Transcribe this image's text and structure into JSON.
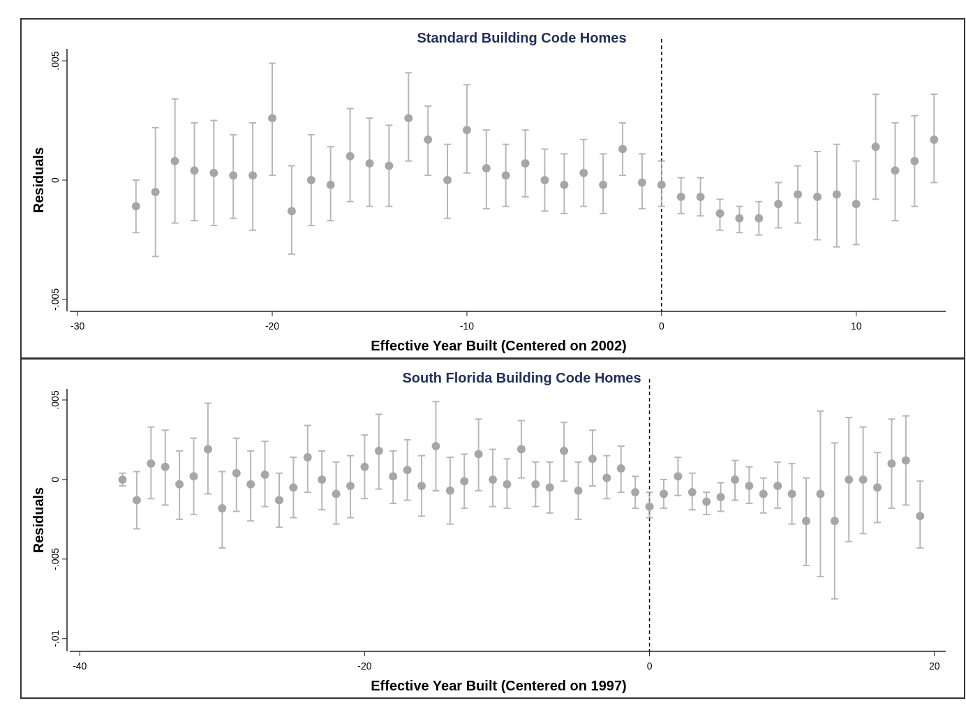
{
  "chart_data": [
    {
      "type": "scatter",
      "title": "Standard Building Code Homes",
      "xlabel": "Effective Year Built (Centered on 2002)",
      "ylabel": "Residuals",
      "marker": "circle",
      "xlim": [
        -30.4,
        14.6
      ],
      "ylim": [
        -0.0055,
        0.0055
      ],
      "xticks": [
        -30,
        -20,
        -10,
        0,
        10
      ],
      "yticks": [
        {
          "value": -0.005,
          "label": "-.005"
        },
        0,
        {
          "value": 0.005,
          "label": ".005"
        }
      ],
      "ref_lines": [
        {
          "axis": "x",
          "value": 0,
          "color": "#000000",
          "line_style": "dashed"
        }
      ],
      "series": [
        {
          "color": "#a6a6a6",
          "x": [
            -27,
            -26,
            -25,
            -24,
            -23,
            -22,
            -21,
            -20,
            -19,
            -18,
            -17,
            -16,
            -15,
            -14,
            -13,
            -12,
            -11,
            -10,
            -9,
            -8,
            -7,
            -6,
            -5,
            -4,
            -3,
            -2,
            -1,
            0,
            1,
            2,
            3,
            4,
            5,
            6,
            7,
            8,
            9,
            10,
            11,
            12,
            13,
            14
          ],
          "values": [
            -0.0011,
            -0.0005,
            0.0008,
            0.0004,
            0.0003,
            0.0002,
            0.0002,
            0.0026,
            -0.0013,
            0,
            -0.0002,
            0.001,
            0.0007,
            0.0006,
            0.0026,
            0.0017,
            0,
            0.0021,
            0.0005,
            0.0002,
            0.0007,
            0,
            -0.0002,
            0.0003,
            -0.0002,
            0.0013,
            -0.0001,
            -0.0002,
            -0.0007,
            -0.0007,
            -0.0014,
            -0.0016,
            -0.0016,
            -0.001,
            -0.0006,
            -0.0007,
            -0.0006,
            -0.001,
            0.0014,
            0.0004,
            0.0008,
            0.0017
          ],
          "errors": [
            [
              -0.0022,
              0
            ],
            [
              -0.0032,
              0.0022
            ],
            [
              -0.0018,
              0.0034
            ],
            [
              -0.0017,
              0.0024
            ],
            [
              -0.0019,
              0.0025
            ],
            [
              -0.0016,
              0.0019
            ],
            [
              -0.0021,
              0.0024
            ],
            [
              0.0002,
              0.0049
            ],
            [
              -0.0031,
              0.0006
            ],
            [
              -0.0019,
              0.0019
            ],
            [
              -0.0017,
              0.0014
            ],
            [
              -0.0009,
              0.003
            ],
            [
              -0.0011,
              0.0026
            ],
            [
              -0.0011,
              0.0023
            ],
            [
              0.0008,
              0.0045
            ],
            [
              0.0002,
              0.0031
            ],
            [
              -0.0016,
              0.0015
            ],
            [
              0.0003,
              0.004
            ],
            [
              -0.0012,
              0.0021
            ],
            [
              -0.0011,
              0.0015
            ],
            [
              -0.0007,
              0.0021
            ],
            [
              -0.0013,
              0.0013
            ],
            [
              -0.0014,
              0.0011
            ],
            [
              -0.0011,
              0.0017
            ],
            [
              -0.0014,
              0.0011
            ],
            [
              0.0002,
              0.0024
            ],
            [
              -0.0012,
              0.0011
            ],
            [
              -0.0011,
              0.0008
            ],
            [
              -0.0014,
              0.0001
            ],
            [
              -0.0015,
              0.0001
            ],
            [
              -0.0021,
              -0.0008
            ],
            [
              -0.0022,
              -0.0011
            ],
            [
              -0.0023,
              -0.0009
            ],
            [
              -0.002,
              -0.0001
            ],
            [
              -0.0018,
              0.0006
            ],
            [
              -0.0025,
              0.0012
            ],
            [
              -0.0028,
              0.0015
            ],
            [
              -0.0027,
              0.0008
            ],
            [
              -0.0008,
              0.0036
            ],
            [
              -0.0017,
              0.0024
            ],
            [
              -0.0011,
              0.0027
            ],
            [
              -0.0001,
              0.0036
            ]
          ]
        }
      ]
    },
    {
      "type": "scatter",
      "title": "South Florida Building Code Homes",
      "xlabel": "Effective Year Built (Centered on 1997)",
      "ylabel": "Residuals",
      "marker": "circle",
      "xlim": [
        -40.7,
        20.8
      ],
      "ylim": [
        -0.0108,
        0.0057
      ],
      "xticks": [
        -40,
        -20,
        0,
        20
      ],
      "yticks": [
        {
          "value": -0.01,
          "label": "-.01"
        },
        {
          "value": -0.005,
          "label": "-.005"
        },
        0,
        {
          "value": 0.005,
          "label": ".005"
        }
      ],
      "ref_lines": [
        {
          "axis": "x",
          "value": 0,
          "color": "#000000",
          "line_style": "dashed"
        }
      ],
      "series": [
        {
          "color": "#a6a6a6",
          "x": [
            -37,
            -36,
            -35,
            -34,
            -33,
            -32,
            -31,
            -30,
            -29,
            -28,
            -27,
            -26,
            -25,
            -24,
            -23,
            -22,
            -21,
            -20,
            -19,
            -18,
            -17,
            -16,
            -15,
            -14,
            -13,
            -12,
            -11,
            -10,
            -9,
            -8,
            -7,
            -6,
            -5,
            -4,
            -3,
            -2,
            -1,
            0,
            1,
            2,
            3,
            4,
            5,
            6,
            7,
            8,
            9,
            10,
            11,
            12,
            13,
            14,
            15,
            16,
            17,
            18,
            19
          ],
          "values": [
            0,
            -0.0013,
            0.001,
            0.0008,
            -0.0003,
            0.0002,
            0.0019,
            -0.0018,
            0.0004,
            -0.0003,
            0.0003,
            -0.0013,
            -0.0005,
            0.0014,
            0,
            -0.0009,
            -0.0004,
            0.0008,
            0.0018,
            0.0002,
            0.0006,
            -0.0004,
            0.0021,
            -0.0007,
            -0.0001,
            0.0016,
            0,
            -0.0003,
            0.0019,
            -0.0003,
            -0.0005,
            0.0018,
            -0.0007,
            0.0013,
            0.0001,
            0.0007,
            -0.0008,
            -0.0017,
            -0.0009,
            0.0002,
            -0.0008,
            -0.0014,
            -0.0011,
            0,
            -0.0004,
            -0.0009,
            -0.0004,
            -0.0009,
            -0.0026,
            -0.0009,
            -0.0026,
            0,
            0,
            -0.0005,
            0.001,
            0.0012,
            -0.0023
          ],
          "errors": [
            [
              -0.0004,
              0.0004
            ],
            [
              -0.0031,
              0.0005
            ],
            [
              -0.0012,
              0.0033
            ],
            [
              -0.0016,
              0.0031
            ],
            [
              -0.0025,
              0.0018
            ],
            [
              -0.0022,
              0.0026
            ],
            [
              -0.0009,
              0.0048
            ],
            [
              -0.0043,
              0.0005
            ],
            [
              -0.002,
              0.0026
            ],
            [
              -0.0026,
              0.0018
            ],
            [
              -0.0017,
              0.0024
            ],
            [
              -0.003,
              0.0004
            ],
            [
              -0.0024,
              0.0014
            ],
            [
              -0.0008,
              0.0034
            ],
            [
              -0.0019,
              0.0018
            ],
            [
              -0.0028,
              0.0011
            ],
            [
              -0.0024,
              0.0015
            ],
            [
              -0.0012,
              0.0028
            ],
            [
              -0.0006,
              0.0041
            ],
            [
              -0.0015,
              0.0018
            ],
            [
              -0.0013,
              0.0025
            ],
            [
              -0.0023,
              0.0015
            ],
            [
              -0.0007,
              0.0049
            ],
            [
              -0.0028,
              0.0014
            ],
            [
              -0.0018,
              0.0016
            ],
            [
              -0.0007,
              0.0038
            ],
            [
              -0.0017,
              0.0019
            ],
            [
              -0.0018,
              0.0013
            ],
            [
              0.0001,
              0.0037
            ],
            [
              -0.0017,
              0.0011
            ],
            [
              -0.0021,
              0.0011
            ],
            [
              -0.0001,
              0.0036
            ],
            [
              -0.0025,
              0.0011
            ],
            [
              -0.0004,
              0.0031
            ],
            [
              -0.0012,
              0.0015
            ],
            [
              -0.0008,
              0.0021
            ],
            [
              -0.0018,
              0.0002
            ],
            [
              -0.0024,
              -0.0008
            ],
            [
              -0.0018,
              0
            ],
            [
              -0.001,
              0.0014
            ],
            [
              -0.0019,
              0.0004
            ],
            [
              -0.0022,
              -0.0008
            ],
            [
              -0.002,
              -0.0002
            ],
            [
              -0.0013,
              0.0012
            ],
            [
              -0.0015,
              0.0008
            ],
            [
              -0.0021,
              0.0001
            ],
            [
              -0.0018,
              0.0011
            ],
            [
              -0.0028,
              0.001
            ],
            [
              -0.0054,
              0.0001
            ],
            [
              -0.0061,
              0.0043
            ],
            [
              -0.0075,
              0.0023
            ],
            [
              -0.0039,
              0.0039
            ],
            [
              -0.0034,
              0.0033
            ],
            [
              -0.0027,
              0.0017
            ],
            [
              -0.0018,
              0.0038
            ],
            [
              -0.0016,
              0.004
            ],
            [
              -0.0043,
              -0.0001
            ]
          ]
        }
      ]
    }
  ]
}
